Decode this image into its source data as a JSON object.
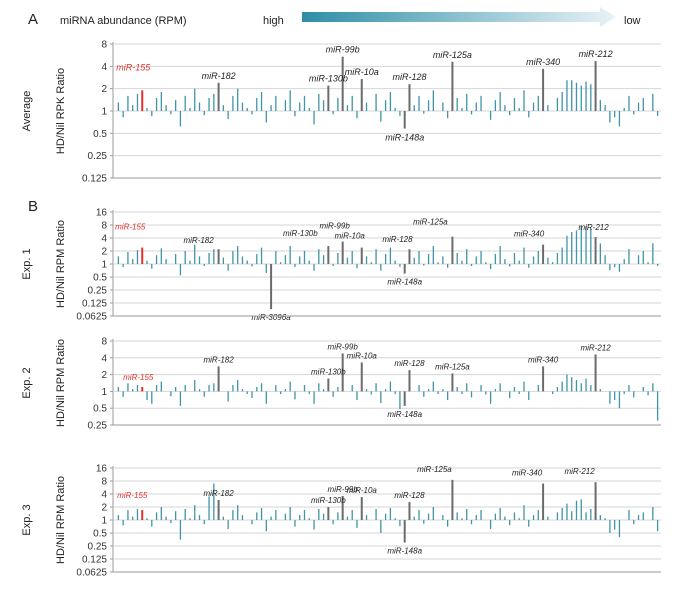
{
  "header": {
    "panel_a_letter": "A",
    "panel_b_letter": "B",
    "abundance_label": "miRNA abundance (RPM)",
    "high_label": "high",
    "low_label": "low"
  },
  "colors": {
    "bar": "#3f94a8",
    "highlight": "#e0322b",
    "named": "#6b6b6b",
    "arrow_start": "#2e8ea6",
    "arrow_end": "#e8f3f6"
  },
  "chart_data": [
    {
      "type": "bar",
      "panel": "A",
      "row_label": "Average",
      "ylabel": "HD/Nil RPK Ratio",
      "log_scale": true,
      "yticks": [
        "8",
        "4",
        "2",
        "1",
        "0.5",
        "0.25",
        "0.125"
      ],
      "ylim": [
        0.125,
        8
      ],
      "highlighted": {
        "name": "miR-155",
        "index": 5,
        "value": 1.9
      },
      "labeled_bars": [
        {
          "name": "miR-182",
          "index": 21,
          "value": 2.4
        },
        {
          "name": "miR-130b",
          "index": 44,
          "value": 2.2
        },
        {
          "name": "miR-99b",
          "index": 47,
          "value": 5.4
        },
        {
          "name": "miR-10a",
          "index": 51,
          "value": 2.7
        },
        {
          "name": "miR-128",
          "index": 61,
          "value": 2.3
        },
        {
          "name": "miR-125a",
          "index": 70,
          "value": 4.6
        },
        {
          "name": "miR-340",
          "index": 89,
          "value": 3.7
        },
        {
          "name": "miR-212",
          "index": 100,
          "value": 4.7
        },
        {
          "name": "miR-148a",
          "index": 60,
          "value": 0.58
        }
      ],
      "values": [
        1.3,
        0.82,
        1.6,
        1.2,
        1.7,
        1.9,
        1.1,
        0.85,
        1.5,
        1.8,
        1.2,
        0.9,
        1.4,
        0.62,
        1.6,
        1.1,
        2.0,
        1.3,
        0.88,
        1.5,
        1.7,
        2.4,
        1.2,
        0.78,
        1.6,
        2.0,
        1.3,
        1.1,
        0.9,
        1.5,
        1.8,
        0.7,
        1.2,
        1.6,
        1.0,
        1.4,
        1.9,
        0.85,
        1.3,
        1.6,
        1.1,
        0.66,
        1.7,
        1.4,
        2.2,
        0.9,
        1.5,
        5.4,
        1.2,
        1.6,
        0.8,
        2.7,
        1.3,
        1.0,
        1.7,
        0.72,
        1.4,
        1.8,
        1.1,
        0.86,
        0.58,
        2.3,
        1.2,
        1.6,
        0.92,
        1.4,
        1.9,
        1.0,
        1.3,
        0.8,
        4.6,
        1.5,
        1.1,
        1.7,
        0.9,
        1.3,
        1.6,
        1.0,
        0.76,
        1.4,
        1.8,
        1.2,
        0.88,
        1.5,
        1.1,
        1.9,
        0.82,
        1.3,
        1.6,
        3.7,
        1.2,
        1.0,
        1.5,
        1.8,
        2.6,
        2.6,
        2.4,
        2.2,
        2.5,
        2.3,
        4.7,
        1.4,
        1.2,
        0.7,
        0.82,
        0.62,
        1.1,
        1.6,
        0.9,
        1.3,
        1.5,
        1.0,
        1.7,
        0.86
      ]
    },
    {
      "type": "bar",
      "panel": "B",
      "row_label": "Exp. 1",
      "ylabel": "HD/Nil RPM Ratio",
      "log_scale": true,
      "yticks": [
        "16",
        "8",
        "4",
        "2",
        "1",
        "0.5",
        "0.25",
        "0.125",
        "0.0625"
      ],
      "ylim": [
        0.0625,
        16
      ],
      "highlighted": {
        "name": "miR-155",
        "index": 5,
        "value": 2.4
      },
      "labeled_bars": [
        {
          "name": "miR-182",
          "index": 21,
          "value": 2.2
        },
        {
          "name": "miR-3096a",
          "index": 32,
          "value": 0.09
        },
        {
          "name": "miR-130b",
          "index": 44,
          "value": 2.6
        },
        {
          "name": "miR-99b",
          "index": 47,
          "value": 3.3
        },
        {
          "name": "miR-10a",
          "index": 51,
          "value": 2.4
        },
        {
          "name": "miR-128",
          "index": 61,
          "value": 2.2
        },
        {
          "name": "miR-148a",
          "index": 60,
          "value": 0.6
        },
        {
          "name": "miR-125a",
          "index": 70,
          "value": 4.3
        },
        {
          "name": "miR-340",
          "index": 89,
          "value": 2.8
        },
        {
          "name": "miR-212",
          "index": 100,
          "value": 4.2
        }
      ],
      "values": [
        1.5,
        0.85,
        1.9,
        1.3,
        2.1,
        2.4,
        1.2,
        0.78,
        1.6,
        2.3,
        1.3,
        1.0,
        1.7,
        0.55,
        2.0,
        1.2,
        2.8,
        1.5,
        0.9,
        1.8,
        2.2,
        2.2,
        1.4,
        0.7,
        2.0,
        2.6,
        1.5,
        1.2,
        0.88,
        1.7,
        2.4,
        0.62,
        0.09,
        2.0,
        1.1,
        1.6,
        2.6,
        0.85,
        1.5,
        2.0,
        1.2,
        0.7,
        2.2,
        1.6,
        2.6,
        0.9,
        1.8,
        3.3,
        1.4,
        2.0,
        0.8,
        2.4,
        1.5,
        1.1,
        2.2,
        0.7,
        1.7,
        2.4,
        1.2,
        0.86,
        0.6,
        2.2,
        1.4,
        2.0,
        0.92,
        1.7,
        2.6,
        1.1,
        1.5,
        0.82,
        4.3,
        1.8,
        1.2,
        2.2,
        0.9,
        1.5,
        2.0,
        1.1,
        0.76,
        1.7,
        2.6,
        1.3,
        0.88,
        1.8,
        1.2,
        2.4,
        0.82,
        1.5,
        2.0,
        2.8,
        1.4,
        1.1,
        1.8,
        2.4,
        4.5,
        5.5,
        6.0,
        7.5,
        7.5,
        6.5,
        4.2,
        3.0,
        1.6,
        0.72,
        0.85,
        0.66,
        1.3,
        2.2,
        1.0,
        1.6,
        2.0,
        1.1,
        3.0,
        0.9
      ]
    },
    {
      "type": "bar",
      "panel": "B",
      "row_label": "Exp. 2",
      "ylabel": "HD/Nil RPM Ratio",
      "log_scale": true,
      "yticks": [
        "8",
        "4",
        "2",
        "1",
        "0.5",
        "0.25"
      ],
      "ylim": [
        0.25,
        8
      ],
      "highlighted": {
        "name": "miR-155",
        "index": 5,
        "value": 1.2
      },
      "labeled_bars": [
        {
          "name": "miR-182",
          "index": 21,
          "value": 2.8
        },
        {
          "name": "miR-130b",
          "index": 44,
          "value": 1.7
        },
        {
          "name": "miR-99b",
          "index": 47,
          "value": 4.8
        },
        {
          "name": "miR-10a",
          "index": 51,
          "value": 3.3
        },
        {
          "name": "miR-128",
          "index": 61,
          "value": 2.4
        },
        {
          "name": "miR-148a",
          "index": 60,
          "value": 0.55
        },
        {
          "name": "miR-125a",
          "index": 70,
          "value": 2.1
        },
        {
          "name": "miR-340",
          "index": 89,
          "value": 2.8
        },
        {
          "name": "miR-212",
          "index": 100,
          "value": 4.6
        }
      ],
      "values": [
        1.2,
        0.8,
        1.4,
        1.1,
        1.3,
        1.2,
        0.7,
        0.6,
        1.3,
        1.5,
        1.0,
        0.82,
        1.2,
        0.55,
        1.3,
        1.0,
        1.6,
        1.1,
        0.8,
        1.3,
        1.4,
        2.8,
        1.0,
        0.66,
        1.3,
        1.6,
        1.1,
        0.9,
        0.76,
        1.2,
        1.4,
        0.6,
        1.0,
        1.3,
        0.9,
        1.1,
        1.5,
        0.72,
        1.0,
        1.3,
        0.9,
        0.6,
        1.4,
        1.1,
        1.7,
        0.8,
        1.2,
        4.8,
        1.0,
        1.3,
        0.7,
        3.3,
        1.1,
        0.88,
        1.4,
        0.62,
        1.1,
        1.5,
        0.9,
        0.48,
        0.55,
        2.4,
        1.0,
        1.3,
        0.8,
        1.1,
        1.5,
        0.9,
        1.1,
        0.7,
        2.1,
        1.2,
        0.9,
        1.4,
        0.78,
        1.0,
        1.3,
        0.88,
        0.6,
        1.1,
        1.4,
        1.0,
        0.76,
        1.2,
        0.9,
        1.5,
        0.7,
        1.0,
        1.3,
        2.8,
        1.0,
        0.9,
        1.2,
        1.5,
        2.0,
        1.8,
        1.6,
        1.4,
        1.7,
        1.3,
        4.6,
        1.1,
        1.0,
        0.6,
        0.7,
        0.5,
        0.9,
        1.3,
        0.78,
        1.0,
        1.2,
        0.85,
        1.4,
        0.3
      ]
    },
    {
      "type": "bar",
      "panel": "B",
      "row_label": "Exp. 3",
      "ylabel": "HD/Nil RPM Ratio",
      "log_scale": true,
      "yticks": [
        "16",
        "8",
        "4",
        "2",
        "1",
        "0.5",
        "0.25",
        "0.125",
        "0.0625"
      ],
      "ylim": [
        0.0625,
        16
      ],
      "highlighted": {
        "name": "miR-155",
        "index": 5,
        "value": 1.7
      },
      "labeled_bars": [
        {
          "name": "miR-182",
          "index": 21,
          "value": 2.9
        },
        {
          "name": "miR-130b",
          "index": 44,
          "value": 2.0
        },
        {
          "name": "miR-99b",
          "index": 47,
          "value": 3.6
        },
        {
          "name": "miR-10a",
          "index": 51,
          "value": 3.4
        },
        {
          "name": "miR-128",
          "index": 61,
          "value": 2.6
        },
        {
          "name": "miR-148a",
          "index": 60,
          "value": 0.3
        },
        {
          "name": "miR-125a",
          "index": 70,
          "value": 8.5
        },
        {
          "name": "miR-340",
          "index": 89,
          "value": 7.0
        },
        {
          "name": "miR-212",
          "index": 100,
          "value": 7.5
        }
      ],
      "values": [
        1.3,
        0.75,
        1.7,
        1.2,
        1.8,
        1.7,
        1.1,
        0.7,
        1.5,
        2.0,
        1.2,
        0.85,
        1.6,
        0.35,
        1.8,
        1.1,
        2.2,
        1.3,
        0.8,
        3.5,
        7.0,
        2.9,
        1.2,
        0.62,
        1.7,
        2.2,
        1.3,
        1.0,
        0.8,
        1.5,
        1.9,
        0.55,
        1.2,
        1.7,
        1.0,
        1.4,
        2.0,
        0.7,
        1.3,
        1.7,
        1.1,
        0.6,
        1.8,
        1.4,
        2.0,
        0.8,
        1.5,
        3.6,
        1.2,
        1.7,
        0.66,
        3.4,
        1.3,
        1.0,
        1.8,
        0.5,
        1.4,
        1.9,
        1.1,
        0.72,
        0.3,
        2.6,
        1.2,
        1.7,
        0.82,
        1.4,
        2.0,
        1.0,
        1.3,
        0.7,
        8.5,
        1.5,
        1.1,
        1.8,
        0.8,
        1.3,
        1.7,
        1.0,
        0.62,
        1.4,
        1.9,
        1.2,
        0.76,
        1.5,
        1.1,
        2.2,
        0.7,
        1.3,
        1.7,
        7.0,
        1.2,
        1.0,
        1.5,
        1.9,
        2.4,
        1.6,
        2.8,
        3.0,
        1.5,
        1.8,
        7.5,
        1.3,
        1.1,
        0.5,
        0.6,
        0.4,
        1.0,
        1.7,
        0.8,
        1.3,
        1.5,
        1.0,
        2.0,
        0.55
      ]
    }
  ]
}
